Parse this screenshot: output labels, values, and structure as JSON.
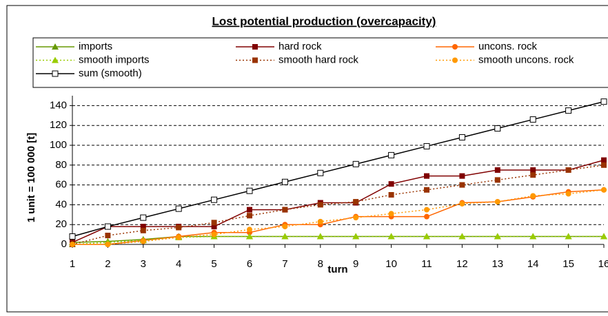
{
  "chart_data": {
    "type": "line",
    "title": "Lost potential production (overcapacity)",
    "xlabel": "turn",
    "ylabel": "1 unit = 100 000 [t]",
    "x": [
      1,
      2,
      3,
      4,
      5,
      6,
      7,
      8,
      9,
      10,
      11,
      12,
      13,
      14,
      15,
      16
    ],
    "xlim": [
      1,
      16
    ],
    "xticks": [
      1,
      2,
      3,
      4,
      5,
      6,
      7,
      8,
      9,
      10,
      11,
      12,
      13,
      14,
      15,
      16
    ],
    "ylim": [
      0,
      150
    ],
    "yticks": [
      0,
      20,
      40,
      60,
      80,
      100,
      120,
      140
    ],
    "grid": true,
    "series": [
      {
        "name": "imports",
        "color": "#669900",
        "style": "solid",
        "marker": "triangle",
        "values": [
          2,
          3,
          5,
          8,
          8,
          8,
          8,
          8,
          8,
          8,
          8,
          8,
          8,
          8,
          8,
          8
        ]
      },
      {
        "name": "hard rock",
        "color": "#800000",
        "style": "solid",
        "marker": "square",
        "values": [
          2,
          18,
          18,
          18,
          18,
          35,
          35,
          42,
          42,
          61,
          69,
          69,
          75,
          75,
          75,
          85
        ]
      },
      {
        "name": "uncons. rock",
        "color": "#ff6600",
        "style": "solid",
        "marker": "circle",
        "values": [
          0,
          0,
          4,
          8,
          12,
          12,
          20,
          20,
          28,
          28,
          28,
          42,
          43,
          48,
          53,
          55
        ]
      },
      {
        "name": "smooth imports",
        "color": "#99cc00",
        "style": "dotted",
        "marker": "triangle",
        "values": [
          0,
          2,
          4,
          7,
          8,
          8,
          8,
          8,
          8,
          8,
          8,
          8,
          8,
          8,
          8,
          8
        ]
      },
      {
        "name": "smooth hard rock",
        "color": "#993300",
        "style": "dotted",
        "marker": "square",
        "values": [
          0,
          9,
          14,
          17,
          22,
          29,
          35,
          40,
          43,
          50,
          55,
          60,
          65,
          70,
          75,
          80
        ]
      },
      {
        "name": "smooth uncons. rock",
        "color": "#ff9900",
        "style": "dotted",
        "marker": "circle",
        "values": [
          0,
          0,
          3,
          7,
          10,
          15,
          18,
          23,
          27,
          31,
          35,
          41,
          43,
          49,
          51,
          55
        ]
      },
      {
        "name": "sum (smooth)",
        "color": "#000000",
        "style": "solid",
        "marker": "open-square",
        "values": [
          8,
          18,
          27,
          36,
          45,
          54,
          63,
          72,
          81,
          90,
          99,
          108,
          117,
          126,
          135,
          144
        ]
      }
    ]
  }
}
